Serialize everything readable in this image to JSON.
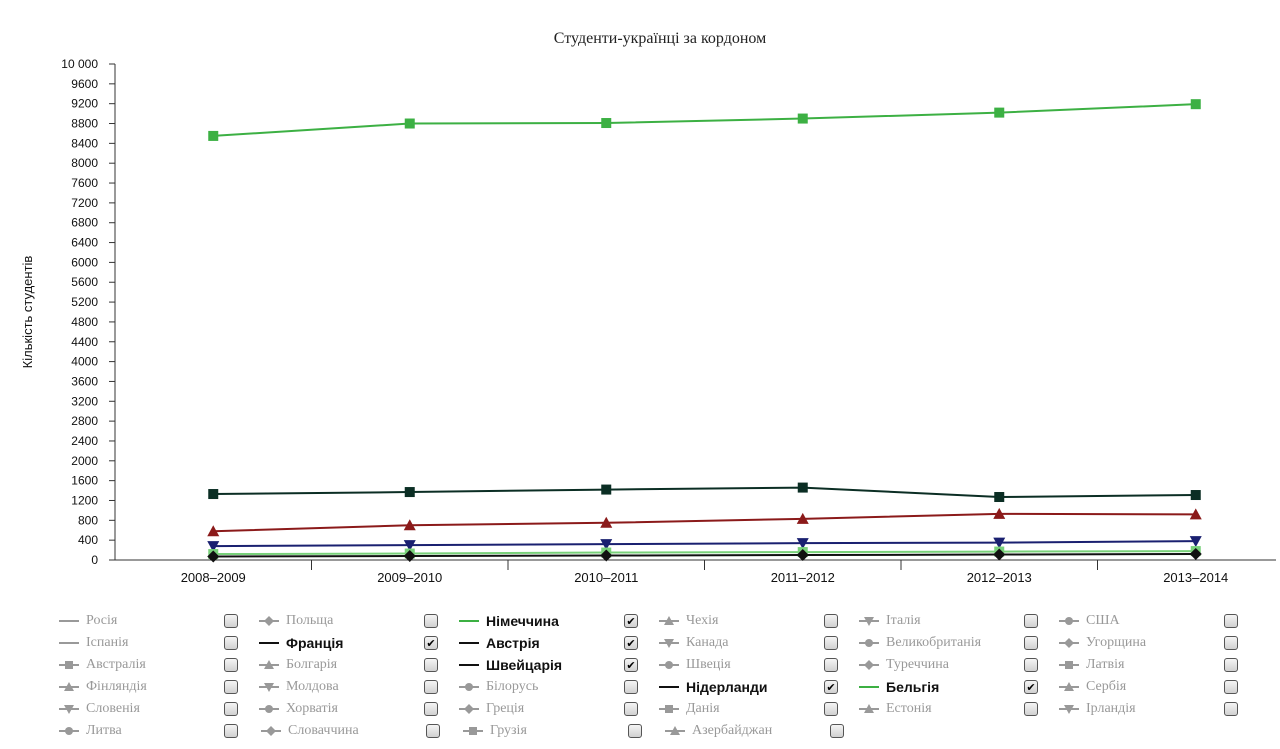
{
  "chart_data": {
    "type": "line",
    "title": "Студенти-українці за кордоном",
    "ylabel": "Кількість студентів",
    "xlabel": "",
    "ylim": [
      0,
      10000
    ],
    "y_ticks": [
      "0",
      "400",
      "800",
      "1200",
      "1600",
      "2000",
      "2400",
      "2800",
      "3200",
      "3600",
      "4000",
      "4400",
      "4800",
      "5200",
      "5600",
      "6000",
      "6400",
      "6800",
      "7200",
      "7600",
      "8000",
      "8400",
      "8800",
      "9200",
      "9600",
      "10 000"
    ],
    "categories": [
      "2008–2009",
      "2009–2010",
      "2010–2011",
      "2011–2012",
      "2012–2013",
      "2013–2014"
    ],
    "legend_placement": "bottom",
    "grid": false,
    "series": [
      {
        "name": "Німеччина",
        "color": "#3cb043",
        "marker": "square",
        "values": [
          8550,
          8800,
          8810,
          8900,
          9020,
          9190
        ]
      },
      {
        "name": "Австрія",
        "color": "#0b2e24",
        "marker": "square",
        "values": [
          1330,
          1370,
          1420,
          1460,
          1270,
          1310
        ]
      },
      {
        "name": "Франція",
        "color": "#8b1a1a",
        "marker": "triangle",
        "values": [
          580,
          700,
          750,
          830,
          930,
          920
        ]
      },
      {
        "name": "Швейцарія",
        "color": "#1a2070",
        "marker": "triangle-down",
        "values": [
          280,
          300,
          320,
          340,
          350,
          380
        ]
      },
      {
        "name": "Бельгія",
        "color": "#79d17a",
        "marker": "square",
        "values": [
          120,
          130,
          150,
          160,
          170,
          180
        ]
      },
      {
        "name": "Нідерланди",
        "color": "#111111",
        "marker": "diamond",
        "values": [
          70,
          80,
          90,
          100,
          110,
          120
        ]
      }
    ]
  },
  "legend": {
    "rows": [
      [
        {
          "name": "Росія",
          "symbol": "line",
          "checked": false
        },
        {
          "name": "Польща",
          "symbol": "diamond",
          "checked": false
        },
        {
          "name": "Німеччина",
          "symbol": "line",
          "color": "#3cb043",
          "checked": true
        },
        {
          "name": "Чехія",
          "symbol": "triangle",
          "checked": false
        },
        {
          "name": "Італія",
          "symbol": "triangle-down",
          "checked": false
        },
        {
          "name": "США",
          "symbol": "circle",
          "checked": false
        }
      ],
      [
        {
          "name": "Іспанія",
          "symbol": "line",
          "checked": false
        },
        {
          "name": "Франція",
          "symbol": "line",
          "color": "#111111",
          "checked": true
        },
        {
          "name": "Австрія",
          "symbol": "line",
          "color": "#111111",
          "checked": true
        },
        {
          "name": "Канада",
          "symbol": "triangle-down",
          "checked": false
        },
        {
          "name": "Великобританія",
          "symbol": "circle",
          "checked": false
        },
        {
          "name": "Угорщина",
          "symbol": "diamond",
          "checked": false
        }
      ],
      [
        {
          "name": "Австралія",
          "symbol": "square",
          "checked": false
        },
        {
          "name": "Болгарія",
          "symbol": "triangle",
          "checked": false
        },
        {
          "name": "Швейцарія",
          "symbol": "line",
          "color": "#111111",
          "checked": true
        },
        {
          "name": "Швеція",
          "symbol": "circle",
          "checked": false
        },
        {
          "name": "Туреччина",
          "symbol": "diamond",
          "checked": false
        },
        {
          "name": "Латвія",
          "symbol": "square",
          "checked": false
        }
      ],
      [
        {
          "name": "Фінляндія",
          "symbol": "triangle",
          "checked": false
        },
        {
          "name": "Молдова",
          "symbol": "triangle-down",
          "checked": false
        },
        {
          "name": "Білорусь",
          "symbol": "circle",
          "checked": false
        },
        {
          "name": "Нідерланди",
          "symbol": "line",
          "color": "#111111",
          "checked": true
        },
        {
          "name": "Бельгія",
          "symbol": "line",
          "color": "#3cb043",
          "checked": true
        },
        {
          "name": "Сербія",
          "symbol": "triangle",
          "checked": false
        }
      ],
      [
        {
          "name": "Словенія",
          "symbol": "triangle-down",
          "checked": false
        },
        {
          "name": "Хорватія",
          "symbol": "circle",
          "checked": false
        },
        {
          "name": "Греція",
          "symbol": "diamond",
          "checked": false
        },
        {
          "name": "Данія",
          "symbol": "square",
          "checked": false
        },
        {
          "name": "Естонія",
          "symbol": "triangle",
          "checked": false
        },
        {
          "name": "Ірландія",
          "symbol": "triangle-down",
          "checked": false
        }
      ],
      [
        {
          "name": "Литва",
          "symbol": "circle",
          "checked": false
        },
        {
          "name": "Словаччина",
          "symbol": "diamond",
          "checked": false
        },
        {
          "name": "Грузія",
          "symbol": "square",
          "checked": false
        },
        {
          "name": "Азербайджан",
          "symbol": "triangle",
          "checked": false
        }
      ]
    ]
  }
}
